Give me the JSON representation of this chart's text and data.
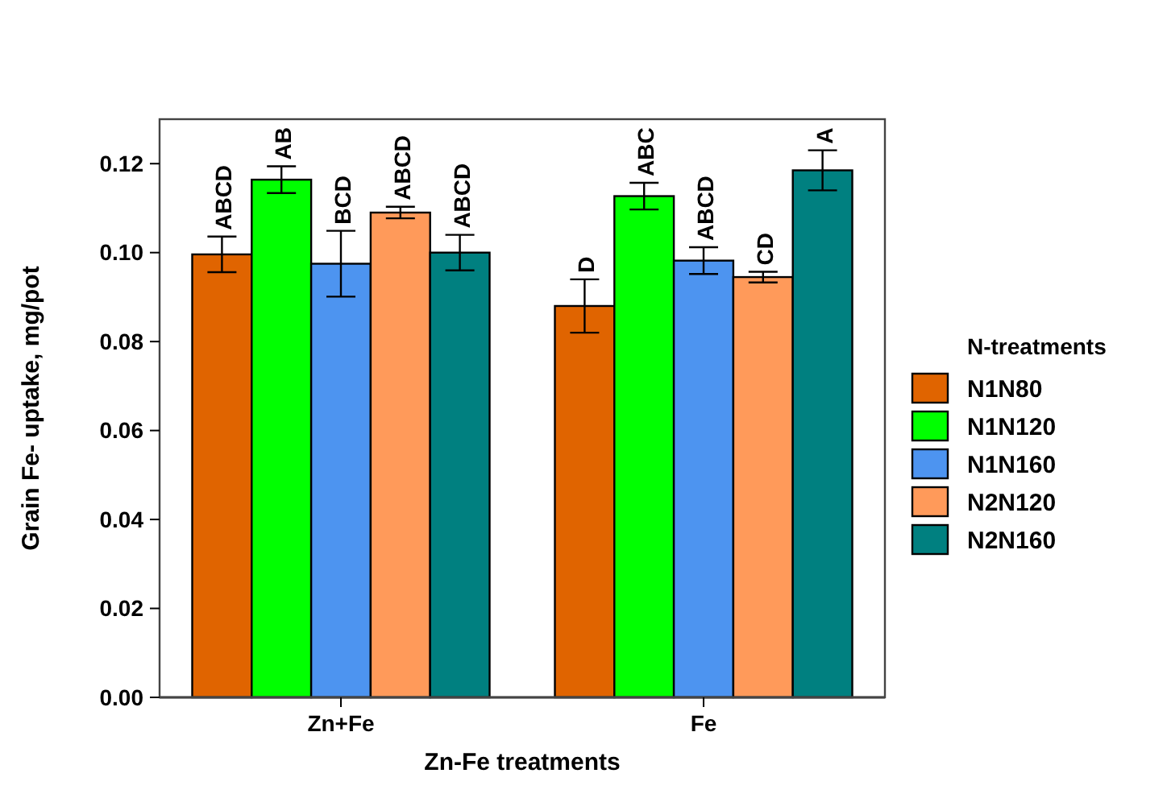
{
  "chart_data": {
    "type": "bar",
    "xlabel": "Zn-Fe treatments",
    "ylabel": "Grain Fe- uptake, mg/pot",
    "legend_title": "N-treatments",
    "categories": [
      "Zn+Fe",
      "Fe"
    ],
    "series": [
      {
        "name": "N1N80",
        "color": "#e06400",
        "values": [
          0.0996,
          0.088
        ],
        "errors": [
          0.004,
          0.006
        ],
        "value_labels": [
          "ABCD",
          "D"
        ]
      },
      {
        "name": "N1N120",
        "color": "#00ff00",
        "values": [
          0.1164,
          0.1127
        ],
        "errors": [
          0.003,
          0.003
        ],
        "value_labels": [
          "AB",
          "ABC"
        ]
      },
      {
        "name": "N1N160",
        "color": "#4d94f0",
        "values": [
          0.0975,
          0.0982
        ],
        "errors": [
          0.0074,
          0.003
        ],
        "value_labels": [
          "BCD",
          "ABCD"
        ]
      },
      {
        "name": "N2N120",
        "color": "#ff9a5a",
        "values": [
          0.109,
          0.0945
        ],
        "errors": [
          0.0013,
          0.0012
        ],
        "value_labels": [
          "ABCD",
          "CD"
        ]
      },
      {
        "name": "N2N160",
        "color": "#008080",
        "values": [
          0.1,
          0.1185
        ],
        "errors": [
          0.004,
          0.0045
        ],
        "value_labels": [
          "ABCD",
          "A"
        ]
      }
    ],
    "ylim": [
      0,
      0.13
    ],
    "yticks": [
      {
        "value": 0,
        "label": "0.00"
      },
      {
        "value": 0.02,
        "label": "0.02"
      },
      {
        "value": 0.04,
        "label": "0.04"
      },
      {
        "value": 0.06,
        "label": "0.06"
      },
      {
        "value": 0.08,
        "label": "0.08"
      },
      {
        "value": 0.1,
        "label": "0.10"
      },
      {
        "value": 0.12,
        "label": "0.12"
      }
    ],
    "legend": "right",
    "grid": false
  }
}
